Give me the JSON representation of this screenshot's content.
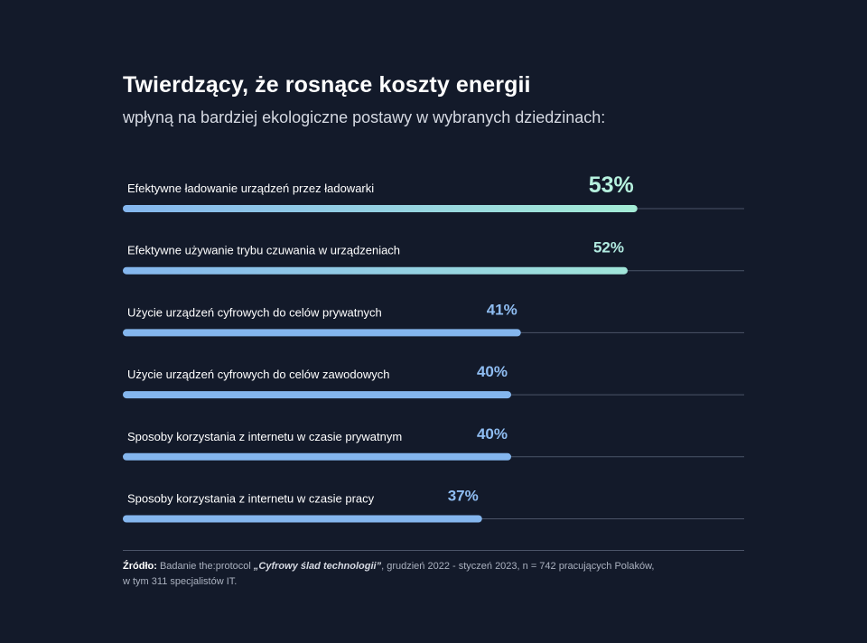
{
  "title": "Twierdzący, że rosnące koszty energii",
  "subtitle": "wpłyną na bardziej ekologiczne postawy w wybranych dziedzinach:",
  "chart_data": {
    "type": "bar",
    "orientation": "horizontal",
    "categories": [
      "Efektywne ładowanie urządzeń przez ładowarki",
      "Efektywne używanie trybu czuwania w urządzeniach",
      "Użycie urządzeń cyfrowych do celów prywatnych",
      "Użycie urządzeń cyfrowych do celów zawodowych",
      "Sposoby korzystania z internetu w czasie prywatnym",
      "Sposoby korzystania z internetu w czasie pracy"
    ],
    "values": [
      53,
      52,
      41,
      40,
      40,
      37
    ],
    "value_labels": [
      "53%",
      "52%",
      "41%",
      "40%",
      "40%",
      "37%"
    ],
    "xlim": [
      0,
      64
    ],
    "grid": false,
    "colors": {
      "bar_start": "#84b6ee",
      "bar_end_top": "#a4ecd6",
      "label_top": "#b6f1de",
      "label_default": "#8fbdf2",
      "track": "#4b5468"
    }
  },
  "source": {
    "label": "Źródło:",
    "text_before": " Badanie the:protocol ",
    "study": "„Cyfrowy ślad technologii”",
    "text_after": ", grudzień 2022 - styczeń 2023, n = 742 pracujących Polaków,",
    "line2": "w tym 311 specjalistów IT."
  }
}
